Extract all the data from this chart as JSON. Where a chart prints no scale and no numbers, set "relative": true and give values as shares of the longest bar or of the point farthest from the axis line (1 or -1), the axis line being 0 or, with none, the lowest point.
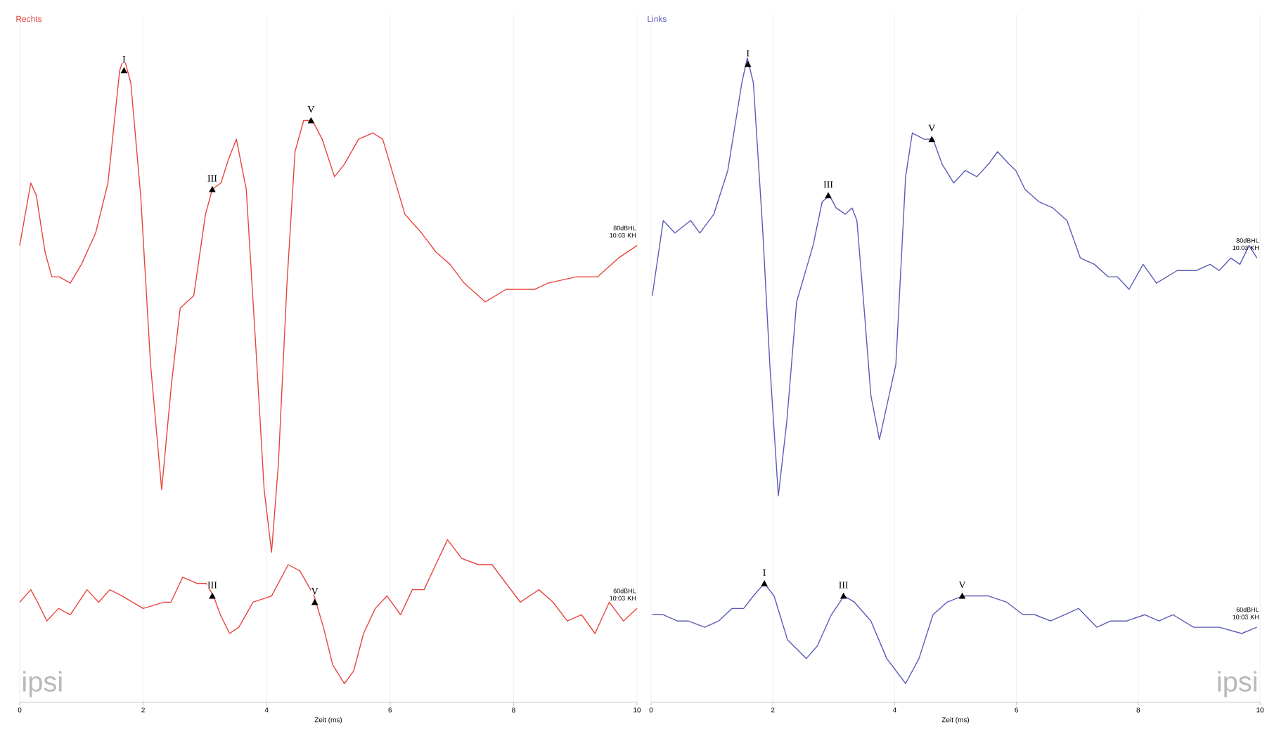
{
  "chart_data": [
    {
      "type": "line",
      "title": "Rechts",
      "xlabel": "Zeit (ms)",
      "xlim": [
        0,
        10
      ],
      "xticks": [
        0,
        2,
        4,
        6,
        8,
        10
      ],
      "relative": true,
      "grid": "x",
      "series": [
        {
          "color": "#e8453c",
          "x": [
            0.0,
            0.18,
            0.27,
            0.41,
            0.52,
            0.64,
            0.82,
            1.0,
            1.23,
            1.43,
            1.62,
            1.69,
            1.8,
            1.96,
            2.12,
            2.3,
            2.46,
            2.6,
            2.82,
            3.01,
            3.12,
            3.26,
            3.39,
            3.51,
            3.67,
            3.83,
            3.96,
            4.08,
            4.19,
            4.33,
            4.46,
            4.6,
            4.74,
            4.9,
            5.1,
            5.26,
            5.49,
            5.72,
            5.88,
            6.06,
            6.24,
            6.51,
            6.74,
            6.97,
            7.2,
            7.54,
            7.88,
            8.34,
            8.56,
            9.02,
            9.36,
            9.7,
            10.0
          ],
          "values": [
            0.7,
            0.8,
            0.78,
            0.69,
            0.65,
            0.65,
            0.64,
            0.67,
            0.72,
            0.8,
            0.98,
            1.0,
            0.96,
            0.78,
            0.51,
            0.31,
            0.48,
            0.6,
            0.62,
            0.75,
            0.79,
            0.8,
            0.84,
            0.87,
            0.79,
            0.53,
            0.31,
            0.21,
            0.35,
            0.64,
            0.85,
            0.9,
            0.9,
            0.87,
            0.81,
            0.83,
            0.87,
            0.88,
            0.87,
            0.81,
            0.75,
            0.72,
            0.69,
            0.67,
            0.64,
            0.61,
            0.63,
            0.63,
            0.64,
            0.65,
            0.65,
            0.68,
            0.7
          ]
        },
        {
          "color": "#e8453c",
          "x": [
            0.0,
            0.18,
            0.29,
            0.44,
            0.63,
            0.82,
            1.09,
            1.28,
            1.46,
            1.66,
            2.0,
            2.34,
            2.45,
            2.64,
            2.87,
            3.02,
            3.14,
            3.25,
            3.4,
            3.55,
            3.78,
            4.08,
            4.35,
            4.54,
            4.77,
            4.92,
            5.07,
            5.26,
            5.41,
            5.57,
            5.76,
            5.95,
            6.17,
            6.36,
            6.55,
            6.74,
            6.93,
            7.16,
            7.43,
            7.65,
            7.88,
            8.11,
            8.41,
            8.64,
            8.87,
            9.1,
            9.32,
            9.55,
            9.78,
            10.0
          ],
          "values": [
            0.13,
            0.15,
            0.13,
            0.1,
            0.12,
            0.11,
            0.15,
            0.13,
            0.15,
            0.14,
            0.12,
            0.13,
            0.13,
            0.17,
            0.16,
            0.16,
            0.14,
            0.11,
            0.08,
            0.09,
            0.13,
            0.14,
            0.19,
            0.18,
            0.14,
            0.09,
            0.03,
            0.0,
            0.02,
            0.08,
            0.12,
            0.14,
            0.11,
            0.15,
            0.15,
            0.19,
            0.23,
            0.2,
            0.19,
            0.19,
            0.16,
            0.13,
            0.15,
            0.13,
            0.1,
            0.11,
            0.08,
            0.13,
            0.1,
            0.12
          ]
        }
      ],
      "annotations": [
        {
          "text": "I",
          "x": 1.69,
          "y": 0.98
        },
        {
          "text": "III",
          "x": 3.12,
          "y": 0.79
        },
        {
          "text": "V",
          "x": 4.72,
          "y": 0.9
        },
        {
          "text": "III",
          "x": 3.12,
          "y": 0.14
        },
        {
          "text": "V",
          "x": 4.78,
          "y": 0.13
        },
        {
          "text": "80dBHL 10:03 KH",
          "x": 10,
          "y": 0.7
        },
        {
          "text": "60dBHL 10:03 KH",
          "x": 10,
          "y": 0.12
        },
        "ipsi"
      ]
    },
    {
      "type": "line",
      "title": "Links",
      "xlabel": "Zeit (ms)",
      "xlim": [
        0,
        10
      ],
      "xticks": [
        0,
        2,
        4,
        6,
        8,
        10
      ],
      "relative": true,
      "grid": "x",
      "series": [
        {
          "color": "#5b5bb8",
          "x": [
            0.02,
            0.2,
            0.39,
            0.65,
            0.8,
            1.03,
            1.26,
            1.49,
            1.58,
            1.68,
            1.83,
            1.95,
            2.09,
            2.23,
            2.39,
            2.51,
            2.66,
            2.81,
            2.93,
            3.04,
            3.19,
            3.3,
            3.38,
            3.49,
            3.61,
            3.75,
            4.02,
            4.18,
            4.29,
            4.48,
            4.63,
            4.78,
            4.97,
            5.16,
            5.35,
            5.54,
            5.69,
            5.88,
            5.99,
            6.14,
            6.37,
            6.6,
            6.83,
            7.05,
            7.28,
            7.51,
            7.66,
            7.85,
            8.08,
            8.3,
            8.64,
            8.95,
            9.18,
            9.33,
            9.52,
            9.67,
            9.82,
            9.95
          ],
          "values": [
            0.62,
            0.74,
            0.72,
            0.74,
            0.72,
            0.75,
            0.82,
            0.96,
            1.0,
            0.96,
            0.73,
            0.51,
            0.3,
            0.42,
            0.61,
            0.65,
            0.7,
            0.77,
            0.78,
            0.76,
            0.75,
            0.76,
            0.74,
            0.61,
            0.46,
            0.39,
            0.51,
            0.81,
            0.88,
            0.87,
            0.87,
            0.83,
            0.8,
            0.82,
            0.81,
            0.83,
            0.85,
            0.83,
            0.82,
            0.79,
            0.77,
            0.76,
            0.74,
            0.68,
            0.67,
            0.65,
            0.65,
            0.63,
            0.67,
            0.64,
            0.66,
            0.66,
            0.67,
            0.66,
            0.68,
            0.67,
            0.7,
            0.68
          ]
        },
        {
          "color": "#5b5bb8",
          "x": [
            0.02,
            0.2,
            0.43,
            0.61,
            0.88,
            1.11,
            1.33,
            1.52,
            1.68,
            1.86,
            2.02,
            2.24,
            2.55,
            2.73,
            2.96,
            3.17,
            3.34,
            3.61,
            3.87,
            4.18,
            4.4,
            4.63,
            4.86,
            5.12,
            5.31,
            5.54,
            5.84,
            6.11,
            6.3,
            6.56,
            6.79,
            7.02,
            7.32,
            7.55,
            7.81,
            8.11,
            8.34,
            8.57,
            8.91,
            9.33,
            9.7,
            9.95
          ],
          "values": [
            0.11,
            0.11,
            0.1,
            0.1,
            0.09,
            0.1,
            0.12,
            0.12,
            0.14,
            0.16,
            0.14,
            0.07,
            0.04,
            0.06,
            0.11,
            0.14,
            0.13,
            0.1,
            0.04,
            0.0,
            0.04,
            0.11,
            0.13,
            0.14,
            0.14,
            0.14,
            0.13,
            0.11,
            0.11,
            0.1,
            0.11,
            0.12,
            0.09,
            0.1,
            0.1,
            0.11,
            0.1,
            0.11,
            0.09,
            0.09,
            0.08,
            0.09
          ]
        }
      ],
      "annotations": [
        {
          "text": "I",
          "x": 1.59,
          "y": 0.99
        },
        {
          "text": "III",
          "x": 2.91,
          "y": 0.78
        },
        {
          "text": "V",
          "x": 4.61,
          "y": 0.87
        },
        {
          "text": "I",
          "x": 1.86,
          "y": 0.16
        },
        {
          "text": "III",
          "x": 3.16,
          "y": 0.14
        },
        {
          "text": "V",
          "x": 5.11,
          "y": 0.14
        },
        {
          "text": "80dBHL 10:03 KH",
          "x": 10,
          "y": 0.68
        },
        {
          "text": "60dBHL 10:03 KH",
          "x": 10,
          "y": 0.09
        },
        "ipsi"
      ]
    }
  ]
}
